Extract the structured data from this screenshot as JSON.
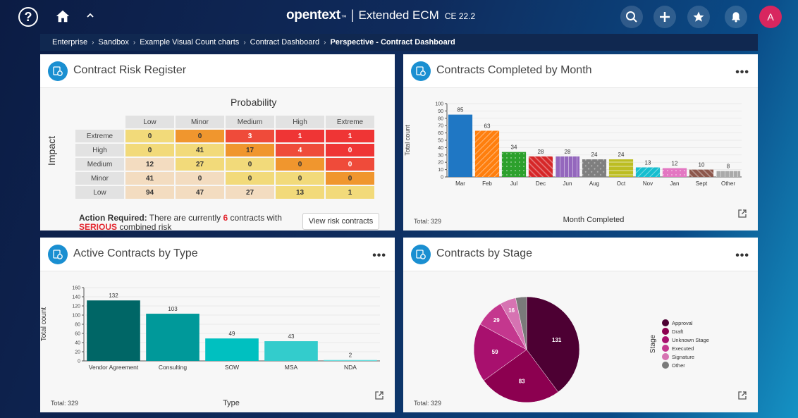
{
  "header": {
    "brand": "opentext",
    "brand_tm": "™",
    "product": "Extended ECM",
    "version": "CE 22.2",
    "help_label": "?",
    "avatar_initial": "A"
  },
  "breadcrumb": {
    "items": [
      "Enterprise",
      "Sandbox",
      "Example Visual Count charts",
      "Contract Dashboard"
    ],
    "current": "Perspective - Contract Dashboard"
  },
  "risk_panel": {
    "title": "Contract Risk Register",
    "probability_label": "Probability",
    "impact_label": "Impact",
    "columns": [
      "Low",
      "Minor",
      "Medium",
      "High",
      "Extreme"
    ],
    "rows": [
      {
        "label": "Extreme",
        "values": [
          "0",
          "0",
          "3",
          "1",
          "1"
        ],
        "colors": [
          "#f2da7a",
          "#f0962e",
          "#ef4b3a",
          "#ef3535",
          "#ef3535"
        ]
      },
      {
        "label": "High",
        "values": [
          "0",
          "41",
          "17",
          "4",
          "0"
        ],
        "colors": [
          "#f2da7a",
          "#f2da7a",
          "#f0962e",
          "#ef4b3a",
          "#ef3535"
        ]
      },
      {
        "label": "Medium",
        "values": [
          "12",
          "27",
          "0",
          "0",
          "0"
        ],
        "colors": [
          "#f3dcc0",
          "#f2da7a",
          "#f2da7a",
          "#f0962e",
          "#ef4b3a"
        ]
      },
      {
        "label": "Minor",
        "values": [
          "41",
          "0",
          "0",
          "0",
          "0"
        ],
        "colors": [
          "#f3dcc0",
          "#f3dcc0",
          "#f2da7a",
          "#f2da7a",
          "#f0962e"
        ]
      },
      {
        "label": "Low",
        "values": [
          "94",
          "47",
          "27",
          "13",
          "1"
        ],
        "colors": [
          "#f3dcc0",
          "#f3dcc0",
          "#f3dcc0",
          "#f2da7a",
          "#f2da7a"
        ]
      }
    ],
    "action_required": "Action Required:",
    "action_text_1": " There are currently ",
    "action_count": "6",
    "action_text_2": " contracts with ",
    "serious": "SERIOUS",
    "action_text_3": " combined risk",
    "view_button": "View risk contracts"
  },
  "month_panel": {
    "title": "Contracts Completed by Month",
    "total": "Total: 329",
    "chart_data": {
      "type": "bar",
      "categories": [
        "Mar",
        "Feb",
        "Jul",
        "Dec",
        "Jun",
        "Aug",
        "Oct",
        "Nov",
        "Jan",
        "Sept",
        "Other"
      ],
      "values": [
        85,
        63,
        34,
        28,
        28,
        24,
        24,
        13,
        12,
        10,
        8
      ],
      "colors": [
        "#1f77c4",
        "#ff7f0e",
        "#2ca02c",
        "#d62728",
        "#9467bd",
        "#7f7f7f",
        "#bcbd22",
        "#17becf",
        "#e377c2",
        "#8c564b",
        "#aaaaaa"
      ],
      "xlabel": "Month Completed",
      "ylabel": "Total count",
      "ylim": [
        0,
        100
      ],
      "yticks": [
        0,
        10,
        20,
        30,
        40,
        50,
        60,
        70,
        80,
        90,
        100
      ]
    }
  },
  "type_panel": {
    "title": "Active Contracts by Type",
    "total": "Total: 329",
    "chart_data": {
      "type": "bar",
      "categories": [
        "Vendor Agreement",
        "Consulting",
        "SOW",
        "MSA",
        "NDA"
      ],
      "values": [
        132,
        103,
        49,
        43,
        2
      ],
      "colors": [
        "#006666",
        "#00999a",
        "#00c0c0",
        "#33cccc",
        "#66dddd"
      ],
      "xlabel": "Type",
      "ylabel": "Total count",
      "ylim": [
        0,
        160
      ],
      "yticks": [
        0,
        20,
        40,
        60,
        80,
        100,
        120,
        140,
        160
      ]
    }
  },
  "stage_panel": {
    "title": "Contracts by Stage",
    "total": "Total: 329",
    "chart_data": {
      "type": "pie",
      "labels": [
        "Approval",
        "Draft",
        "Unknown Stage",
        "Executed",
        "Signature",
        "Other"
      ],
      "values": [
        131,
        83,
        59,
        29,
        16,
        11
      ],
      "colors": [
        "#4d0033",
        "#8c0050",
        "#a8106e",
        "#c4378e",
        "#d673b2",
        "#7a7a7a"
      ],
      "legend_title": "Stage"
    }
  }
}
